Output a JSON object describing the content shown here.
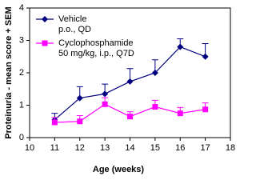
{
  "chart_data": {
    "type": "line",
    "x_label": "Age (weeks)",
    "y_label": "Proteinuria - mean score + SEM",
    "x": [
      11,
      12,
      13,
      14,
      15,
      16,
      17
    ],
    "series": [
      {
        "name": "Vehicle",
        "note": "p.o., QD",
        "color": "#000080",
        "marker": "diamond",
        "values": [
          0.55,
          1.22,
          1.35,
          1.73,
          2.0,
          2.8,
          2.5
        ],
        "errors": [
          0.2,
          0.35,
          0.3,
          0.4,
          0.4,
          0.25,
          0.4
        ]
      },
      {
        "name": "Cyclophosphamide",
        "note": "50 mg/kg, i.p., Q7D",
        "color": "#ff00ff",
        "marker": "square",
        "values": [
          0.47,
          0.5,
          1.03,
          0.65,
          0.95,
          0.75,
          0.87
        ],
        "errors": [
          0.15,
          0.18,
          0.2,
          0.15,
          0.2,
          0.18,
          0.2
        ]
      }
    ],
    "xlim": [
      10,
      18
    ],
    "xticks": [
      10,
      11,
      12,
      13,
      14,
      15,
      16,
      17,
      18
    ],
    "ylim": [
      0,
      4
    ],
    "yticks": [
      0,
      1,
      2,
      3,
      4
    ],
    "grid": false,
    "legend": "upper left"
  }
}
